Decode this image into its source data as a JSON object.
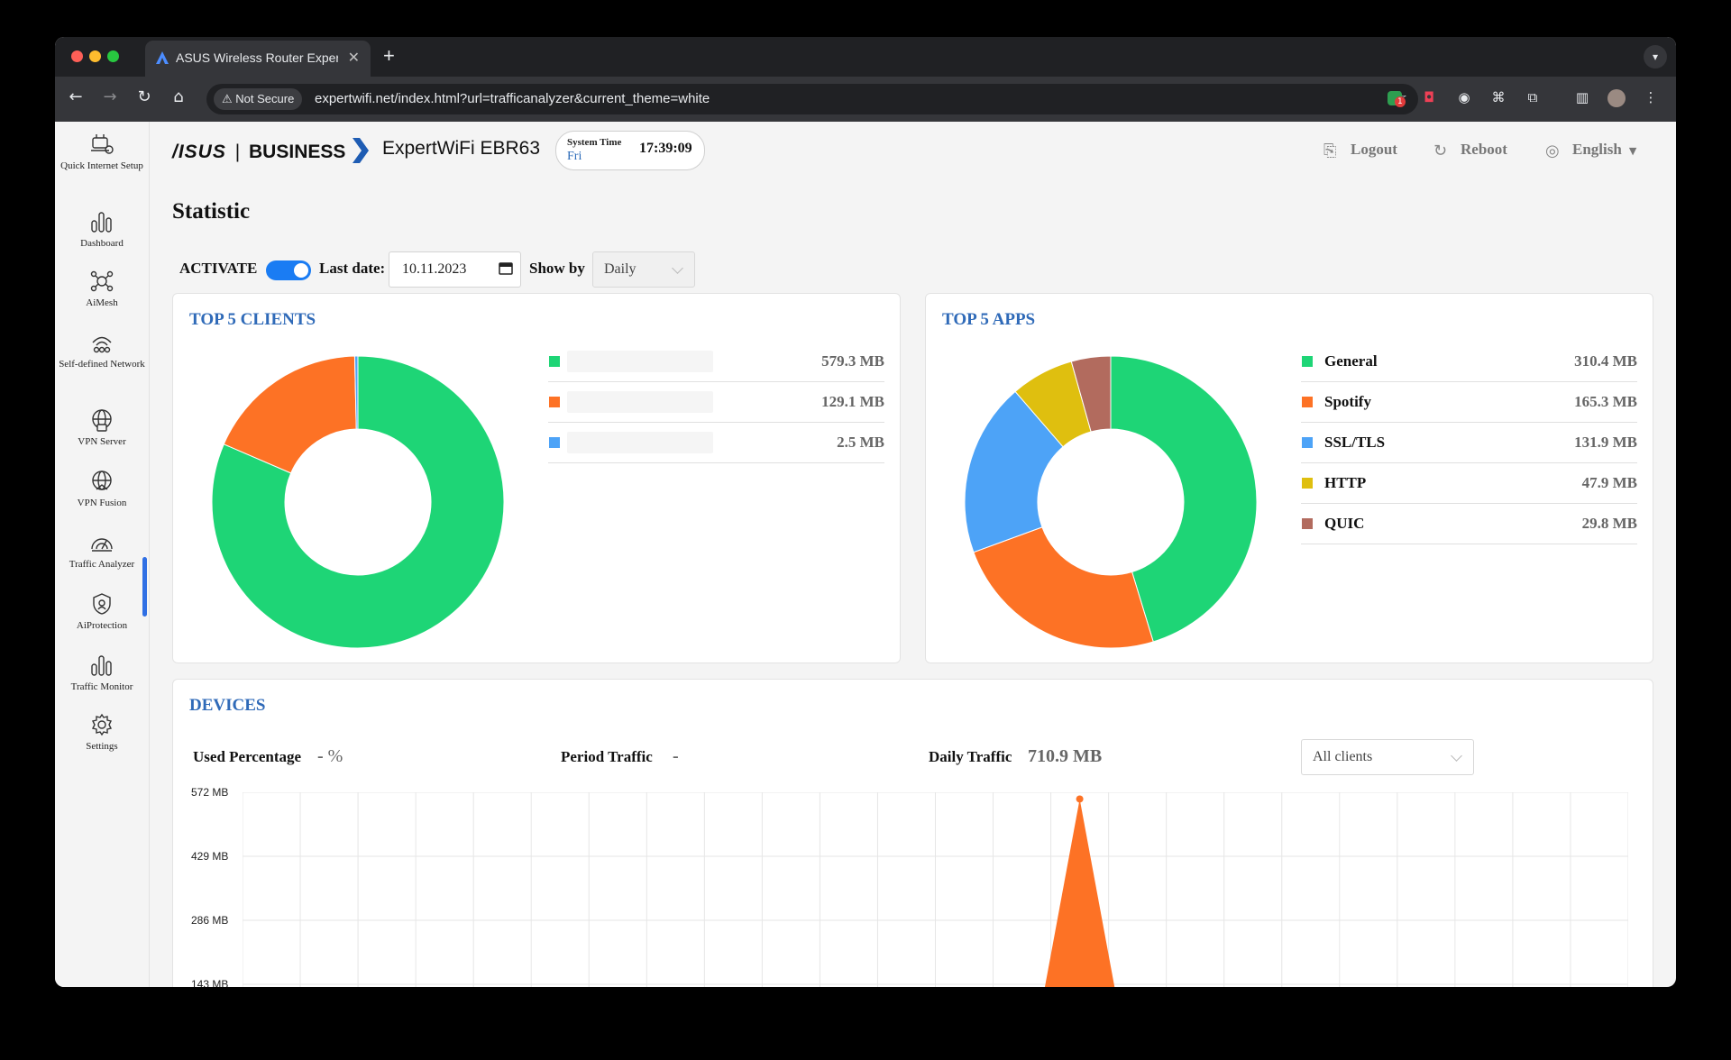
{
  "browser": {
    "tab_title": "ASUS Wireless Router Exper",
    "tab_close": "✕",
    "new_tab": "+",
    "not_secure": "Not Secure",
    "url": "expertwifi.net/index.html?url=trafficanalyzer&current_theme=white",
    "extension_badge": "1"
  },
  "sidebar": {
    "items": [
      {
        "label": "Quick Internet Setup",
        "icon": "quick-setup-icon"
      },
      {
        "label": "Dashboard",
        "icon": "dashboard-icon"
      },
      {
        "label": "AiMesh",
        "icon": "aimesh-icon"
      },
      {
        "label": "Self-defined Network",
        "icon": "network-icon"
      },
      {
        "label": "VPN Server",
        "icon": "vpn-server-icon"
      },
      {
        "label": "VPN Fusion",
        "icon": "vpn-fusion-icon"
      },
      {
        "label": "Traffic Analyzer",
        "icon": "traffic-analyzer-icon"
      },
      {
        "label": "AiProtection",
        "icon": "aiprotection-icon"
      },
      {
        "label": "Traffic Monitor",
        "icon": "traffic-monitor-icon"
      },
      {
        "label": "Settings",
        "icon": "settings-icon"
      }
    ],
    "active": "Traffic Analyzer"
  },
  "header": {
    "brand_asus": "/ISUS",
    "brand_divider": "|",
    "brand_business": "BUSINESS",
    "model": "ExpertWiFi EBR63",
    "system_time_label": "System Time",
    "system_day": "Fri",
    "system_time": "17:39:09",
    "logout": "Logout",
    "reboot": "Reboot",
    "language": "English"
  },
  "page": {
    "title": "Statistic",
    "activate_label": "ACTIVATE",
    "activate_on": true,
    "last_date_label": "Last date:",
    "last_date": "10.11.2023",
    "show_by_label": "Show by",
    "show_by": "Daily"
  },
  "top_clients": {
    "title": "TOP 5 CLIENTS",
    "items": [
      {
        "name": "",
        "value": "579.3 MB",
        "color": "#1ed576"
      },
      {
        "name": "",
        "value": "129.1 MB",
        "color": "#fd7225"
      },
      {
        "name": "",
        "value": "2.5 MB",
        "color": "#4da3f7"
      }
    ]
  },
  "top_apps": {
    "title": "TOP 5 APPS",
    "items": [
      {
        "name": "General",
        "value": "310.4 MB",
        "color": "#1ed576"
      },
      {
        "name": "Spotify",
        "value": "165.3 MB",
        "color": "#fd7225"
      },
      {
        "name": "SSL/TLS",
        "value": "131.9 MB",
        "color": "#4da3f7"
      },
      {
        "name": "HTTP",
        "value": "47.9 MB",
        "color": "#dfbf0f"
      },
      {
        "name": "QUIC",
        "value": "29.8 MB",
        "color": "#b26b5e"
      }
    ]
  },
  "devices": {
    "title": "DEVICES",
    "used_percentage_label": "Used Percentage",
    "used_percentage_value": "-",
    "used_percentage_unit": "%",
    "period_traffic_label": "Period Traffic",
    "period_traffic_value": "-",
    "daily_traffic_label": "Daily Traffic",
    "daily_traffic_value": "710.9 MB",
    "client_filter": "All clients"
  },
  "chart_data": [
    {
      "type": "pie",
      "title": "TOP 5 CLIENTS",
      "categories": [
        "",
        "",
        ""
      ],
      "values": [
        579.3,
        129.1,
        2.5
      ],
      "colors": [
        "#1ed576",
        "#fd7225",
        "#4da3f7"
      ]
    },
    {
      "type": "pie",
      "title": "TOP 5 APPS",
      "categories": [
        "General",
        "Spotify",
        "SSL/TLS",
        "HTTP",
        "QUIC"
      ],
      "values": [
        310.4,
        165.3,
        131.9,
        47.9,
        29.8
      ],
      "colors": [
        "#1ed576",
        "#fd7225",
        "#4da3f7",
        "#dfbf0f",
        "#b26b5e"
      ]
    },
    {
      "type": "area",
      "title": "DEVICES",
      "y_tick_labels": [
        "572 MB",
        "429 MB",
        "286 MB",
        "143 MB"
      ],
      "ylim": [
        0,
        572
      ],
      "grid": true,
      "point_count": 24,
      "series": [
        {
          "color": "#fd7225",
          "values": [
            0,
            0,
            0,
            0,
            0,
            0,
            0,
            0,
            0,
            0,
            0,
            0,
            0,
            0,
            557,
            0,
            0,
            0,
            0,
            0,
            0,
            0,
            0,
            0
          ]
        }
      ]
    }
  ]
}
